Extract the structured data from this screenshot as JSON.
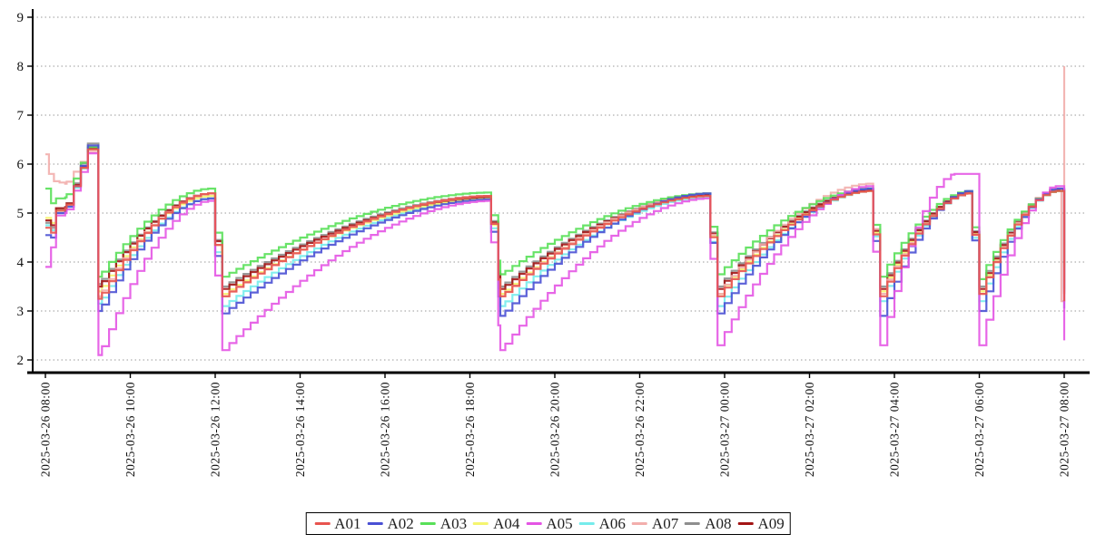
{
  "chart_data": {
    "type": "line",
    "title": "",
    "xlabel": "",
    "ylabel": "",
    "ylim": [
      2,
      9
    ],
    "y_ticks": [
      2,
      3,
      4,
      5,
      6,
      7,
      8,
      9
    ],
    "grid": "horizontal-dotted",
    "grid_color": "#999999",
    "axis_color": "#000000",
    "legend_position": "bottom-center",
    "x_start": "2025-03-26 08:00",
    "x_end": "2025-03-27 08:00",
    "x_tick_minutes": [
      0,
      120,
      240,
      360,
      480,
      600,
      720,
      840,
      960,
      1080,
      1200,
      1320,
      1440
    ],
    "x_tick_labels": [
      "2025-03-26 08:00",
      "2025-03-26 10:00",
      "2025-03-26 12:00",
      "2025-03-26 14:00",
      "2025-03-26 16:00",
      "2025-03-26 18:00",
      "2025-03-26 20:00",
      "2025-03-26 22:00",
      "2025-03-27 00:00",
      "2025-03-27 02:00",
      "2025-03-27 04:00",
      "2025-03-27 06:00",
      "2025-03-27 08:00"
    ],
    "series": [
      {
        "name": "A01",
        "color": "#e8544f",
        "points": [
          [
            0,
            4.7
          ],
          [
            8,
            4.6
          ],
          [
            15,
            5.05
          ],
          [
            28,
            5.1
          ],
          [
            60,
            6.3
          ],
          [
            75,
            3.25
          ],
          [
            230,
            5.4
          ],
          [
            250,
            3.3
          ],
          [
            625,
            5.35
          ],
          [
            643,
            3.3
          ],
          [
            933,
            5.35
          ],
          [
            950,
            3.3
          ],
          [
            1163,
            5.45
          ],
          [
            1180,
            3.3
          ],
          [
            1303,
            5.4
          ],
          [
            1320,
            3.35
          ],
          [
            1428,
            5.45
          ],
          [
            1440,
            3.2
          ]
        ]
      },
      {
        "name": "A02",
        "color": "#4a50d4",
        "points": [
          [
            0,
            4.55
          ],
          [
            8,
            4.5
          ],
          [
            15,
            5.0
          ],
          [
            28,
            5.05
          ],
          [
            60,
            6.38
          ],
          [
            75,
            3.0
          ],
          [
            230,
            5.3
          ],
          [
            250,
            2.95
          ],
          [
            625,
            5.28
          ],
          [
            643,
            2.9
          ],
          [
            933,
            5.4
          ],
          [
            950,
            2.95
          ],
          [
            1163,
            5.5
          ],
          [
            1180,
            2.9
          ],
          [
            1303,
            5.45
          ],
          [
            1320,
            3.0
          ],
          [
            1428,
            5.5
          ],
          [
            1440,
            3.05
          ]
        ]
      },
      {
        "name": "A03",
        "color": "#58e058",
        "points": [
          [
            0,
            5.5
          ],
          [
            8,
            5.2
          ],
          [
            15,
            5.3
          ],
          [
            28,
            5.32
          ],
          [
            60,
            6.35
          ],
          [
            75,
            3.7
          ],
          [
            230,
            5.5
          ],
          [
            250,
            3.7
          ],
          [
            625,
            5.42
          ],
          [
            643,
            3.75
          ],
          [
            933,
            5.4
          ],
          [
            950,
            3.75
          ],
          [
            1163,
            5.5
          ],
          [
            1180,
            3.7
          ],
          [
            1303,
            5.45
          ],
          [
            1320,
            3.65
          ],
          [
            1428,
            5.45
          ],
          [
            1440,
            3.9
          ]
        ]
      },
      {
        "name": "A04",
        "color": "#f5f56e",
        "points": [
          [
            0,
            4.9
          ],
          [
            8,
            4.8
          ],
          [
            15,
            5.05
          ],
          [
            28,
            5.1
          ],
          [
            60,
            6.3
          ],
          [
            75,
            3.4
          ],
          [
            230,
            5.35
          ],
          [
            250,
            3.35
          ],
          [
            625,
            5.3
          ],
          [
            643,
            3.35
          ],
          [
            933,
            5.35
          ],
          [
            950,
            3.35
          ],
          [
            1163,
            5.45
          ],
          [
            1180,
            3.4
          ],
          [
            1303,
            5.4
          ],
          [
            1320,
            3.4
          ],
          [
            1428,
            5.45
          ],
          [
            1440,
            3.6
          ]
        ]
      },
      {
        "name": "A05",
        "color": "#e455e4",
        "points": [
          [
            0,
            3.9
          ],
          [
            8,
            4.3
          ],
          [
            15,
            4.95
          ],
          [
            28,
            5.0
          ],
          [
            60,
            6.22
          ],
          [
            75,
            2.1
          ],
          [
            230,
            5.25
          ],
          [
            250,
            2.2
          ],
          [
            625,
            5.25
          ],
          [
            643,
            2.2
          ],
          [
            933,
            5.3
          ],
          [
            950,
            2.3
          ],
          [
            1163,
            5.55
          ],
          [
            1180,
            2.3
          ],
          [
            1285,
            5.8
          ],
          [
            1310,
            5.8
          ],
          [
            1320,
            2.3
          ],
          [
            1428,
            5.55
          ],
          [
            1440,
            2.4
          ]
        ]
      },
      {
        "name": "A06",
        "color": "#76ecec",
        "points": [
          [
            0,
            4.75
          ],
          [
            8,
            4.65
          ],
          [
            15,
            5.0
          ],
          [
            28,
            5.05
          ],
          [
            60,
            6.3
          ],
          [
            75,
            3.15
          ],
          [
            230,
            5.3
          ],
          [
            250,
            3.1
          ],
          [
            625,
            5.3
          ],
          [
            643,
            3.1
          ],
          [
            933,
            5.33
          ],
          [
            950,
            3.1
          ],
          [
            1163,
            5.45
          ],
          [
            1180,
            3.2
          ],
          [
            1303,
            5.4
          ],
          [
            1320,
            3.2
          ],
          [
            1428,
            5.45
          ],
          [
            1440,
            3.4
          ]
        ]
      },
      {
        "name": "A07",
        "color": "#f2aeac",
        "points": [
          [
            0,
            6.2
          ],
          [
            5,
            5.8
          ],
          [
            12,
            5.65
          ],
          [
            28,
            5.6
          ],
          [
            60,
            6.25
          ],
          [
            75,
            3.3
          ],
          [
            230,
            5.4
          ],
          [
            250,
            3.3
          ],
          [
            625,
            5.35
          ],
          [
            643,
            3.3
          ],
          [
            933,
            5.4
          ],
          [
            950,
            3.35
          ],
          [
            1163,
            5.6
          ],
          [
            1180,
            3.35
          ],
          [
            1303,
            5.4
          ],
          [
            1320,
            3.35
          ],
          [
            1428,
            5.5
          ],
          [
            1436,
            3.2
          ],
          [
            1440,
            8.0
          ]
        ]
      },
      {
        "name": "A08",
        "color": "#8e8e8e",
        "points": [
          [
            0,
            4.8
          ],
          [
            8,
            4.7
          ],
          [
            15,
            5.08
          ],
          [
            28,
            5.12
          ],
          [
            60,
            6.42
          ],
          [
            75,
            3.55
          ],
          [
            230,
            5.4
          ],
          [
            250,
            3.5
          ],
          [
            625,
            5.35
          ],
          [
            643,
            3.5
          ],
          [
            933,
            5.38
          ],
          [
            950,
            3.5
          ],
          [
            1163,
            5.48
          ],
          [
            1180,
            3.5
          ],
          [
            1303,
            5.42
          ],
          [
            1320,
            3.5
          ],
          [
            1428,
            5.48
          ],
          [
            1440,
            3.45
          ]
        ]
      },
      {
        "name": "A09",
        "color": "#a31515",
        "points": [
          [
            0,
            4.85
          ],
          [
            8,
            4.75
          ],
          [
            15,
            5.1
          ],
          [
            28,
            5.12
          ],
          [
            60,
            6.33
          ],
          [
            75,
            3.5
          ],
          [
            230,
            5.4
          ],
          [
            250,
            3.45
          ],
          [
            625,
            5.33
          ],
          [
            643,
            3.45
          ],
          [
            933,
            5.37
          ],
          [
            950,
            3.45
          ],
          [
            1163,
            5.47
          ],
          [
            1180,
            3.45
          ],
          [
            1303,
            5.42
          ],
          [
            1320,
            3.45
          ],
          [
            1428,
            5.47
          ],
          [
            1440,
            3.35
          ]
        ]
      }
    ]
  }
}
